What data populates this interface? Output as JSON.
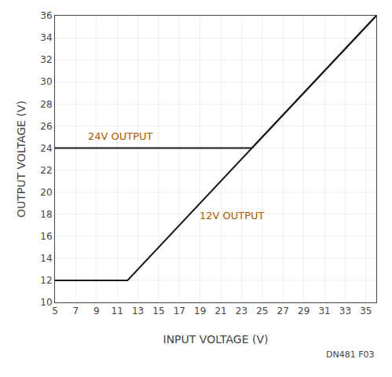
{
  "chart_data": {
    "type": "line",
    "xlabel": "INPUT VOLTAGE (V)",
    "ylabel": "OUTPUT VOLTAGE (V)",
    "series": [
      {
        "x": [
          5,
          12,
          36
        ],
        "values": [
          12,
          12,
          36
        ],
        "color": "#1a1a1a"
      },
      {
        "x": [
          5,
          24,
          36
        ],
        "values": [
          24,
          24,
          36
        ],
        "color": "#1a1a1a"
      }
    ],
    "annotations": [
      {
        "text": "24V OUTPUT",
        "x": 8.0,
        "y": 24.4,
        "color": "#b05a00"
      },
      {
        "text": "12V OUTPUT",
        "x": 18.8,
        "y": 17.2,
        "color": "#b05a00"
      },
      {
        "text": "DN481 F03"
      }
    ],
    "xlim": [
      5,
      36
    ],
    "ylim": [
      10,
      36
    ],
    "xticks": [
      5,
      7,
      9,
      11,
      13,
      15,
      17,
      19,
      21,
      23,
      25,
      27,
      29,
      31,
      33,
      35
    ],
    "yticks": [
      10,
      12,
      14,
      16,
      18,
      20,
      22,
      24,
      26,
      28,
      30,
      32,
      34,
      36
    ],
    "grid": true
  }
}
